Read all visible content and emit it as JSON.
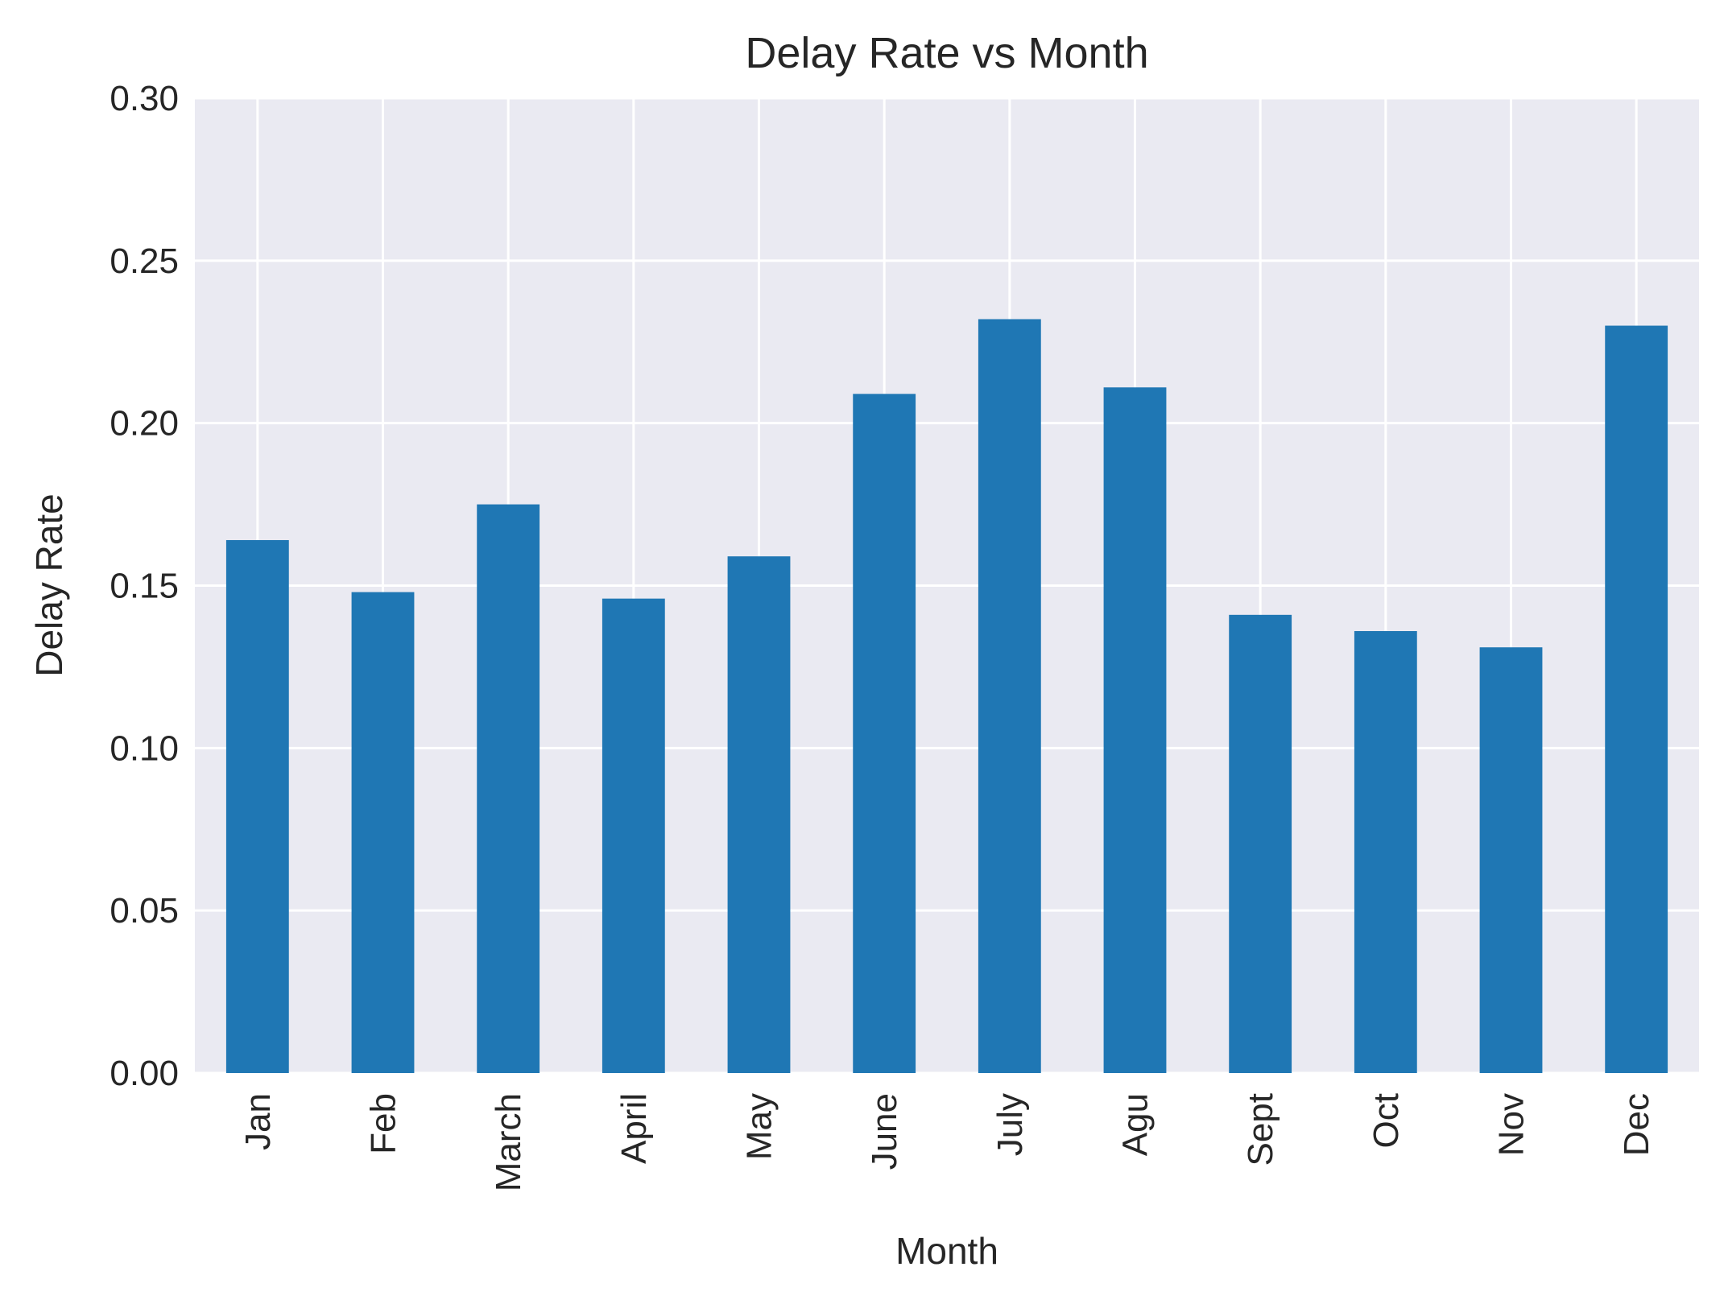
{
  "chart_data": {
    "type": "bar",
    "title": "Delay Rate vs Month",
    "xlabel": "Month",
    "ylabel": "Delay Rate",
    "categories": [
      "Jan",
      "Feb",
      "March",
      "April",
      "May",
      "June",
      "July",
      "Agu",
      "Sept",
      "Oct",
      "Nov",
      "Dec"
    ],
    "values": [
      0.164,
      0.148,
      0.175,
      0.146,
      0.159,
      0.209,
      0.232,
      0.211,
      0.141,
      0.136,
      0.131,
      0.23
    ],
    "ylim": [
      0,
      0.3
    ],
    "yticks": [
      "0.00",
      "0.05",
      "0.10",
      "0.15",
      "0.20",
      "0.25",
      "0.30"
    ],
    "grid": true,
    "bar_color": "#1f77b4",
    "plot_background": "#eaeaf2",
    "grid_color": "#ffffff"
  }
}
